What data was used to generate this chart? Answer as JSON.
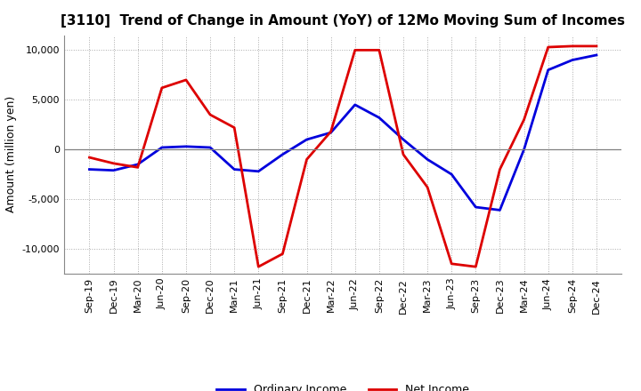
{
  "title": "[3110]  Trend of Change in Amount (YoY) of 12Mo Moving Sum of Incomes",
  "ylabel": "Amount (million yen)",
  "xlabels": [
    "Sep-19",
    "Dec-19",
    "Mar-20",
    "Jun-20",
    "Sep-20",
    "Dec-20",
    "Mar-21",
    "Jun-21",
    "Sep-21",
    "Dec-21",
    "Mar-22",
    "Jun-22",
    "Sep-22",
    "Dec-22",
    "Mar-23",
    "Jun-23",
    "Sep-23",
    "Dec-23",
    "Mar-24",
    "Jun-24",
    "Sep-24",
    "Dec-24"
  ],
  "ordinary_income": [
    -2000,
    -2100,
    -1500,
    200,
    300,
    200,
    -2000,
    -2200,
    -500,
    1000,
    1700,
    4500,
    3200,
    1000,
    -1000,
    -2500,
    -5800,
    -6100,
    0,
    8000,
    9000,
    9500
  ],
  "net_income": [
    -800,
    -1400,
    -1800,
    6200,
    7000,
    3500,
    2200,
    -11800,
    -10500,
    -1000,
    1800,
    10000,
    10000,
    -500,
    -3800,
    -11500,
    -11800,
    -2000,
    3000,
    10300,
    10400,
    10400
  ],
  "ordinary_color": "#0000dd",
  "net_color": "#dd0000",
  "ylim": [
    -12500,
    11500
  ],
  "yticks": [
    -10000,
    -5000,
    0,
    5000,
    10000
  ],
  "bg_color": "#ffffff",
  "grid_color": "#aaaaaa",
  "line_width": 2.0,
  "legend_ordinary": "Ordinary Income",
  "legend_net": "Net Income",
  "title_fontsize": 11,
  "axis_label_fontsize": 9,
  "tick_fontsize": 8,
  "legend_fontsize": 9
}
